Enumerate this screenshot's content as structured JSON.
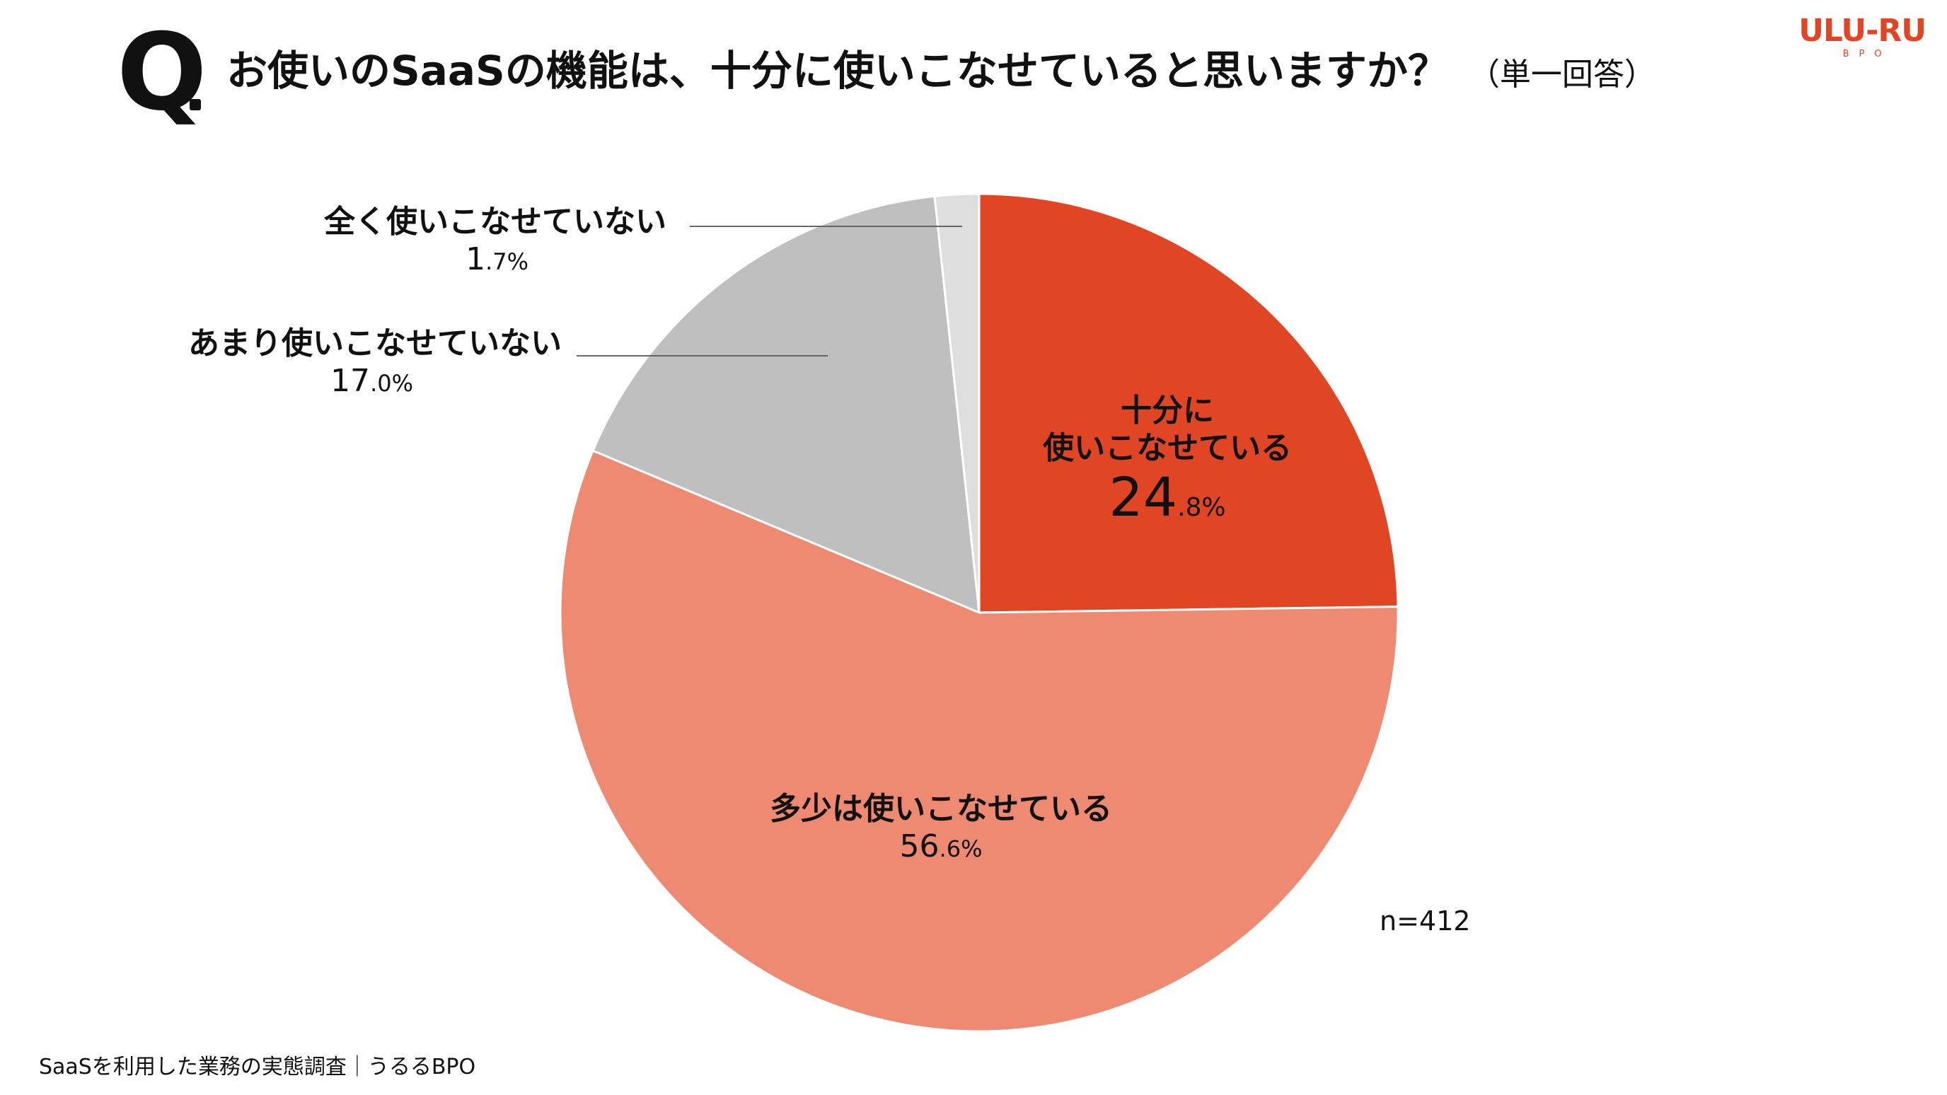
{
  "header": {
    "q_letter": "Q",
    "question": "お使いのSaaSの機能は、十分に使いこなせていると思いますか？",
    "question_note": "（単一回答）"
  },
  "logo": {
    "main": "ULU-RU",
    "sub": "BPO",
    "color": "#e04623"
  },
  "chart_data": {
    "type": "pie",
    "start": "12 o'clock, clockwise",
    "slices": [
      {
        "label_lines": [
          "十分に",
          "使いこなせている"
        ],
        "value": 24.8,
        "value_int": "24",
        "value_dec": ".8%",
        "color": "#e04623"
      },
      {
        "label_lines": [
          "多少は使いこなせている"
        ],
        "value": 56.6,
        "value_int": "56",
        "value_dec": ".6%",
        "color": "#ed8a71"
      },
      {
        "label_lines": [
          "あまり使いこなせていない"
        ],
        "value": 17.0,
        "value_int": "17",
        "value_dec": ".0%",
        "color": "#bfbfbf"
      },
      {
        "label_lines": [
          "全く使いこなせていない"
        ],
        "value": 1.7,
        "value_int": "1",
        "value_dec": ".7%",
        "color": "#dedede"
      }
    ],
    "n_label": "n=412"
  },
  "footer": {
    "source": "SaaSを利用した業務の実態調査｜うるるBPO"
  }
}
